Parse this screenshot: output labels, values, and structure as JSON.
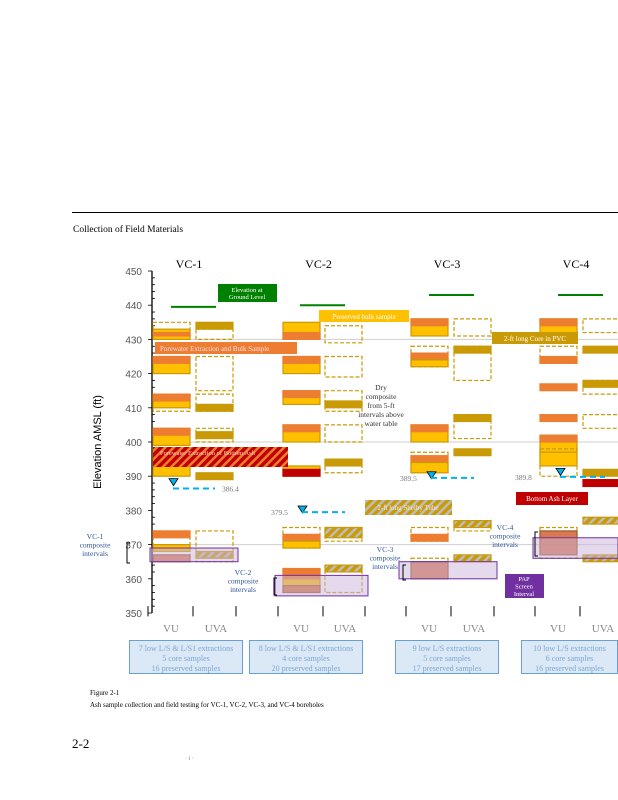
{
  "section_title": "Collection of Field Materials",
  "figure": {
    "y_axis": {
      "label": "Elevation AMSL (ft)",
      "ticks": [
        450,
        440,
        430,
        420,
        410,
        400,
        390,
        380,
        370,
        360,
        350
      ],
      "range": [
        350,
        450
      ]
    },
    "boreholes": [
      {
        "name": "VC-1",
        "columns": [
          "VU",
          "UVA"
        ],
        "water_level": "386.4",
        "composite_label": "VC-1 composite intervals",
        "summary": [
          "7 low L/S & L/S1 extractions",
          "5 core samples",
          "16 preserved samples"
        ]
      },
      {
        "name": "VC-2",
        "columns": [
          "VU",
          "UVA"
        ],
        "water_level": "379.5",
        "composite_label": "VC-2 composite intervals",
        "summary": [
          "8 low L/S & L/S1 extractions",
          "4 core samples",
          "20 preserved samples"
        ]
      },
      {
        "name": "VC-3",
        "columns": [
          "VU",
          "UVA"
        ],
        "water_level": "389.5",
        "composite_label": "VC-3 composite intervals",
        "summary": [
          "9 low L/S   extractions",
          "5 core samples",
          "17 preserved samples"
        ]
      },
      {
        "name": "VC-4",
        "columns": [
          "VU",
          "UVA"
        ],
        "water_level": "389.8",
        "composite_label": "VC-4 composite intervals",
        "summary": [
          "10 low L/S extractions",
          "6 core samples",
          "16 preserved samples"
        ]
      }
    ],
    "callouts": {
      "ground": [
        "Elevation at",
        "Ground  Level"
      ],
      "preserved": "Preserved bulk    sample",
      "porewater_bulk": "Porewater   Extraction and Bulk Sample",
      "pvc": "2-ft  long Core in PVC",
      "dry": [
        "Dry",
        "composite",
        "from  5-ft",
        "intervals above",
        "water table"
      ],
      "bottom_ash_pw": "Porewater    Extraction of Bottom Ash",
      "shelby": "2-ft long Shelby  Tube",
      "bottom_ash_layer": "Bottom Ash Layer",
      "pap": [
        "PAP",
        "Screen",
        "Interval"
      ]
    },
    "colors": {
      "yellow": "#FFC000",
      "orange": "#ED7D31",
      "gold": "#C99A06",
      "red": "#C00000",
      "green": "#008000",
      "purple": "#7030A0",
      "water": "#00B0F0"
    }
  },
  "caption": {
    "label": "Figure 2-1",
    "text": "Ash sample collection and field testing for VC-1, VC-2, VC-3, and VC-4 boreholes"
  },
  "page_number": "2-2",
  "footer_mark": "·  i  ·"
}
